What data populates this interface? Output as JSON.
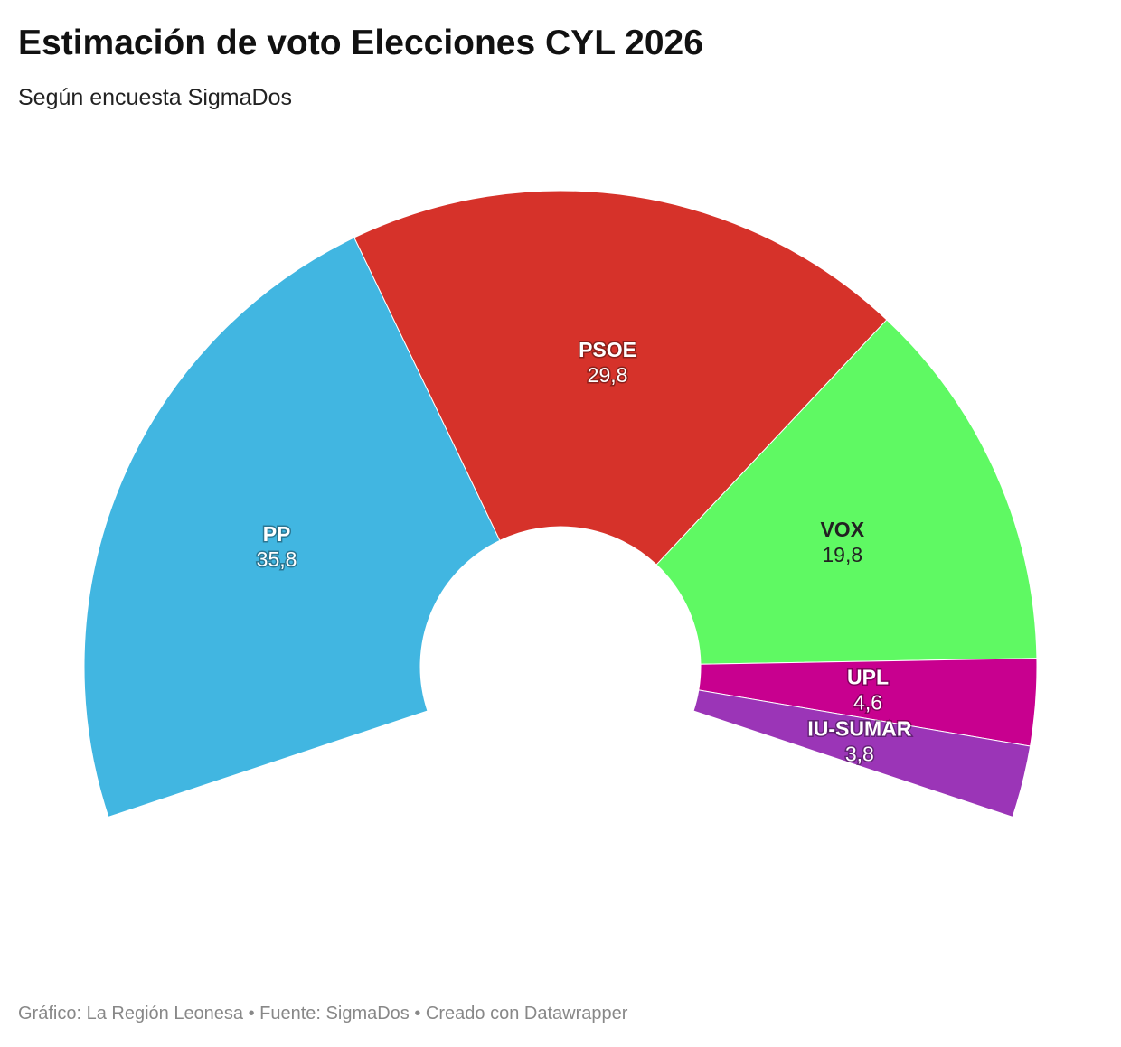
{
  "chart_data": {
    "type": "semi-donut",
    "title": "Estimación de voto Elecciones CYL 2026",
    "subtitle": "Según encuesta SigmaDos",
    "footer": "Gráfico: La Región Leonesa • Fuente: SigmaDos • Creado con Datawrapper",
    "categories": [
      "PP",
      "PSOE",
      "VOX",
      "UPL",
      "IU-SUMAR"
    ],
    "values": [
      35.8,
      29.8,
      19.8,
      4.6,
      3.8
    ],
    "value_labels": [
      "35,8",
      "29,8",
      "19,8",
      "4,6",
      "3,8"
    ],
    "colors": [
      "#41b6e1",
      "#d6322a",
      "#5ff963",
      "#c8008f",
      "#9b35b7"
    ]
  }
}
